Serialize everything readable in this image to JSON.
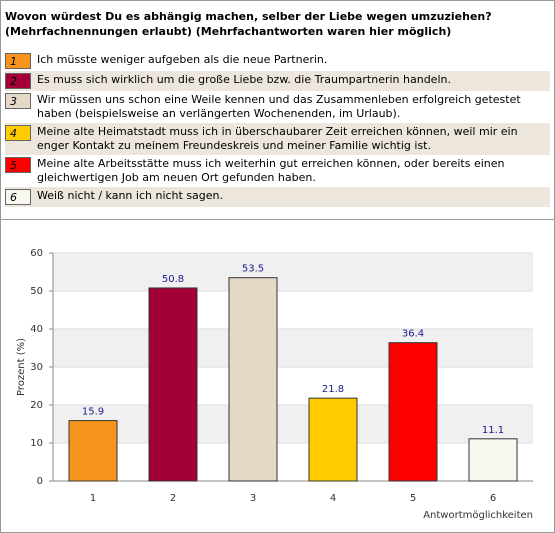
{
  "chart_data": {
    "type": "bar",
    "title": "Wovon würdest Du es abhängig machen, selber der Liebe wegen umzuziehen?",
    "subtitle": "(Mehrfachnennungen erlaubt) (Mehrfachantworten waren hier möglich)",
    "categories": [
      "1",
      "2",
      "3",
      "4",
      "5",
      "6"
    ],
    "options": [
      "Ich müsste weniger aufgeben als die neue Partnerin.",
      "Es muss sich wirklich um die große Liebe bzw. die Traumpartnerin handeln.",
      "Wir müssen uns schon eine Weile kennen und das Zusammenleben erfolgreich getestet haben (beispielsweise an verlängerten Wochenenden, im Urlaub).",
      "Meine alte Heimatstadt muss ich in überschaubarer Zeit erreichen können, weil mir ein enger Kontakt zu meinem Freundeskreis und meiner Familie wichtig ist.",
      "Meine alte Arbeitsstätte muss ich weiterhin gut erreichen können, oder bereits einen gleichwertigen Job am neuen Ort gefunden haben.",
      "Weiß nicht / kann ich nicht sagen."
    ],
    "values": [
      15.9,
      50.8,
      53.5,
      21.8,
      36.4,
      11.1
    ],
    "colors": [
      "#f7941d",
      "#a3003a",
      "#e3d9c6",
      "#ffcc00",
      "#ff0000",
      "#f8f8f0"
    ],
    "ylabel": "Prozent (%)",
    "xlabel": "Antwortmöglichkeiten",
    "ylim": [
      0,
      60
    ],
    "yticks": [
      0,
      10,
      20,
      30,
      40,
      50,
      60
    ],
    "grid": true
  }
}
